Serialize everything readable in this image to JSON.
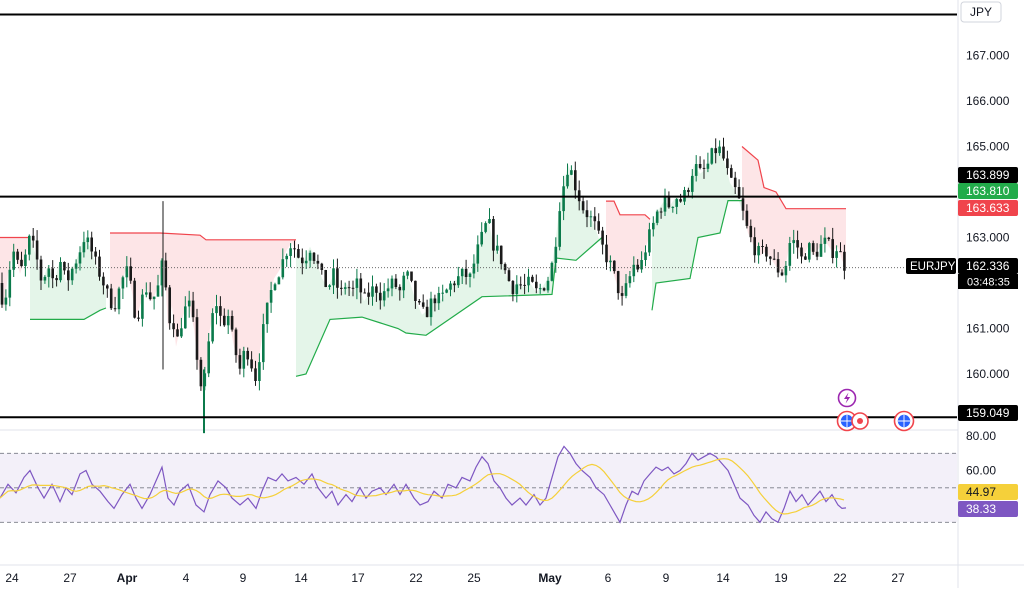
{
  "chart_data": {
    "type": "candlestick",
    "symbol": "EURJPY",
    "currency": "JPY",
    "price_axis": {
      "range": [
        158.6,
        168.2
      ],
      "ticks": [
        "167.000",
        "166.000",
        "165.000",
        "163.000",
        "162.000",
        "161.000",
        "160.000"
      ],
      "tick_values": [
        167,
        166,
        165,
        163,
        162,
        161,
        160
      ]
    },
    "price_labels": [
      {
        "name": "level-top",
        "text": "163.899",
        "value": 163.899,
        "color": "#000000"
      },
      {
        "name": "supertrend-up",
        "text": "163.810",
        "value": 163.81,
        "color": "#22ab4a"
      },
      {
        "name": "supertrend-down",
        "text": "163.633",
        "value": 163.633,
        "color": "#f0444c"
      },
      {
        "name": "last-price",
        "text": "162.336",
        "value": 162.336,
        "color": "#000000"
      },
      {
        "name": "level-bottom",
        "text": "159.049",
        "value": 159.049,
        "color": "#000000"
      }
    ],
    "countdown": "03:48:35",
    "horizontal_levels": [
      167.9,
      163.899,
      159.049
    ],
    "x_axis": {
      "labels": [
        {
          "text": "24",
          "bold": false
        },
        {
          "text": "27",
          "bold": false
        },
        {
          "text": "Apr",
          "bold": true
        },
        {
          "text": "4",
          "bold": false
        },
        {
          "text": "9",
          "bold": false
        },
        {
          "text": "14",
          "bold": false
        },
        {
          "text": "17",
          "bold": false
        },
        {
          "text": "22",
          "bold": false
        },
        {
          "text": "25",
          "bold": false
        },
        {
          "text": "May",
          "bold": true
        },
        {
          "text": "6",
          "bold": false
        },
        {
          "text": "9",
          "bold": false
        },
        {
          "text": "14",
          "bold": false
        },
        {
          "text": "19",
          "bold": false
        },
        {
          "text": "22",
          "bold": false
        },
        {
          "text": "27",
          "bold": false
        }
      ]
    },
    "price_path": [
      [
        0,
        162.0
      ],
      [
        4,
        161.4
      ],
      [
        8,
        162.2
      ],
      [
        14,
        162.7
      ],
      [
        20,
        162.2
      ],
      [
        26,
        162.6
      ],
      [
        30,
        163.0
      ],
      [
        36,
        162.6
      ],
      [
        42,
        162.0
      ],
      [
        48,
        162.4
      ],
      [
        54,
        162.0
      ],
      [
        60,
        162.5
      ],
      [
        66,
        162.0
      ],
      [
        72,
        162.3
      ],
      [
        78,
        162.6
      ],
      [
        84,
        163.0
      ],
      [
        90,
        162.8
      ],
      [
        96,
        162.4
      ],
      [
        102,
        162.1
      ],
      [
        108,
        161.7
      ],
      [
        114,
        161.5
      ],
      [
        120,
        161.9
      ],
      [
        126,
        162.3
      ],
      [
        132,
        161.8
      ],
      [
        136,
        161.2
      ],
      [
        140,
        161.5
      ],
      [
        146,
        161.9
      ],
      [
        152,
        161.6
      ],
      [
        158,
        161.9
      ],
      [
        164,
        162.6
      ],
      [
        168,
        161.0
      ],
      [
        172,
        161.5
      ],
      [
        176,
        160.6
      ],
      [
        182,
        161.2
      ],
      [
        188,
        161.6
      ],
      [
        194,
        161.0
      ],
      [
        198,
        160.2
      ],
      [
        202,
        159.6
      ],
      [
        206,
        160.0
      ],
      [
        210,
        161.0
      ],
      [
        216,
        161.6
      ],
      [
        222,
        161.1
      ],
      [
        228,
        161.3
      ],
      [
        234,
        160.6
      ],
      [
        240,
        160.1
      ],
      [
        246,
        160.6
      ],
      [
        252,
        160.2
      ],
      [
        256,
        159.9
      ],
      [
        262,
        160.8
      ],
      [
        268,
        161.5
      ],
      [
        274,
        162.1
      ],
      [
        280,
        162.3
      ],
      [
        286,
        162.7
      ],
      [
        292,
        162.9
      ],
      [
        298,
        162.6
      ],
      [
        304,
        162.5
      ],
      [
        310,
        162.8
      ],
      [
        316,
        162.5
      ],
      [
        322,
        162.1
      ],
      [
        328,
        161.9
      ],
      [
        334,
        162.2
      ],
      [
        340,
        161.7
      ],
      [
        346,
        162.0
      ],
      [
        352,
        161.8
      ],
      [
        358,
        162.0
      ],
      [
        364,
        161.6
      ],
      [
        370,
        161.8
      ],
      [
        376,
        161.9
      ],
      [
        382,
        161.7
      ],
      [
        388,
        161.9
      ],
      [
        394,
        162.0
      ],
      [
        400,
        161.8
      ],
      [
        406,
        162.2
      ],
      [
        410,
        162.0
      ],
      [
        416,
        161.6
      ],
      [
        422,
        161.3
      ],
      [
        428,
        161.4
      ],
      [
        434,
        161.7
      ],
      [
        440,
        161.6
      ],
      [
        446,
        161.8
      ],
      [
        452,
        162.0
      ],
      [
        458,
        162.1
      ],
      [
        464,
        162.2
      ],
      [
        470,
        162.1
      ],
      [
        476,
        162.6
      ],
      [
        482,
        163.0
      ],
      [
        488,
        163.4
      ],
      [
        494,
        162.8
      ],
      [
        500,
        162.6
      ],
      [
        506,
        162.2
      ],
      [
        512,
        161.9
      ],
      [
        518,
        162.0
      ],
      [
        524,
        161.9
      ],
      [
        530,
        162.0
      ],
      [
        536,
        161.8
      ],
      [
        542,
        161.9
      ],
      [
        548,
        162.1
      ],
      [
        552,
        162.4
      ],
      [
        556,
        163.0
      ],
      [
        560,
        163.8
      ],
      [
        564,
        164.2
      ],
      [
        568,
        164.6
      ],
      [
        572,
        164.4
      ],
      [
        576,
        164.1
      ],
      [
        582,
        163.7
      ],
      [
        588,
        163.5
      ],
      [
        594,
        163.3
      ],
      [
        600,
        162.9
      ],
      [
        606,
        162.6
      ],
      [
        612,
        162.3
      ],
      [
        618,
        161.9
      ],
      [
        622,
        161.6
      ],
      [
        628,
        162.0
      ],
      [
        634,
        162.4
      ],
      [
        640,
        162.3
      ],
      [
        646,
        162.8
      ],
      [
        652,
        163.2
      ],
      [
        658,
        163.6
      ],
      [
        664,
        163.8
      ],
      [
        670,
        163.7
      ],
      [
        676,
        163.9
      ],
      [
        682,
        163.8
      ],
      [
        688,
        164.1
      ],
      [
        694,
        164.6
      ],
      [
        700,
        164.4
      ],
      [
        706,
        164.5
      ],
      [
        712,
        164.8
      ],
      [
        718,
        165.0
      ],
      [
        724,
        164.7
      ],
      [
        730,
        164.2
      ],
      [
        736,
        164.0
      ],
      [
        742,
        163.6
      ],
      [
        748,
        163.1
      ],
      [
        754,
        162.8
      ],
      [
        760,
        162.6
      ],
      [
        766,
        162.7
      ],
      [
        772,
        162.5
      ],
      [
        778,
        162.3
      ],
      [
        784,
        162.2
      ],
      [
        790,
        162.9
      ],
      [
        796,
        162.9
      ],
      [
        802,
        162.5
      ],
      [
        808,
        162.8
      ],
      [
        814,
        162.6
      ],
      [
        820,
        162.8
      ],
      [
        826,
        162.9
      ],
      [
        832,
        162.7
      ],
      [
        838,
        162.8
      ],
      [
        842,
        162.5
      ],
      [
        846,
        162.34
      ]
    ],
    "supertrend": {
      "down_segments": [
        [
          [
            0,
            163.0
          ],
          [
            30,
            163.0
          ]
        ],
        [
          [
            110,
            163.1
          ],
          [
            160,
            163.1
          ],
          [
            200,
            163.05
          ],
          [
            206,
            162.95
          ],
          [
            296,
            162.95
          ]
        ],
        [
          [
            606,
            163.8
          ],
          [
            614,
            163.8
          ],
          [
            620,
            163.5
          ],
          [
            645,
            163.5
          ],
          [
            650,
            163.4
          ]
        ],
        [
          [
            742,
            165.0
          ],
          [
            758,
            164.7
          ],
          [
            764,
            164.1
          ],
          [
            776,
            164.0
          ],
          [
            786,
            163.633
          ],
          [
            846,
            163.633
          ]
        ]
      ],
      "up_segments": [
        [
          [
            30,
            161.2
          ],
          [
            84,
            161.2
          ],
          [
            100,
            161.4
          ],
          [
            106,
            161.45
          ]
        ],
        [
          [
            296,
            159.95
          ],
          [
            306,
            160.0
          ],
          [
            330,
            161.2
          ],
          [
            362,
            161.25
          ],
          [
            398,
            161.0
          ],
          [
            406,
            160.9
          ],
          [
            426,
            160.85
          ],
          [
            482,
            161.7
          ],
          [
            552,
            161.75
          ],
          [
            556,
            162.55
          ],
          [
            576,
            162.5
          ],
          [
            602,
            163.0
          ]
        ],
        [
          [
            652,
            161.4
          ],
          [
            656,
            162.0
          ],
          [
            690,
            162.1
          ],
          [
            698,
            163.0
          ],
          [
            720,
            163.1
          ],
          [
            728,
            163.81
          ],
          [
            742,
            163.81
          ]
        ]
      ]
    },
    "signal_icons": [
      "flash-icon",
      "globe-icon",
      "record-dot-icon",
      "globe-icon"
    ],
    "rsi": {
      "range": [
        20,
        90
      ],
      "ticks": [
        "80.00",
        "60.00"
      ],
      "tick_values": [
        80,
        60
      ],
      "upper_band": 70,
      "mid_band": 50,
      "lower_band": 30,
      "labels": [
        {
          "name": "rsi-ma-value",
          "text": "44.97",
          "value": 44.97,
          "color": "#f5d03a"
        },
        {
          "name": "rsi-value",
          "text": "38.33",
          "value": 38.33,
          "color": "#7e57c2"
        }
      ],
      "rsi_path": [
        [
          0,
          44
        ],
        [
          8,
          52
        ],
        [
          16,
          47
        ],
        [
          24,
          56
        ],
        [
          30,
          60
        ],
        [
          38,
          50
        ],
        [
          44,
          44
        ],
        [
          52,
          52
        ],
        [
          60,
          42
        ],
        [
          66,
          50
        ],
        [
          72,
          46
        ],
        [
          80,
          58
        ],
        [
          86,
          60
        ],
        [
          92,
          52
        ],
        [
          100,
          48
        ],
        [
          108,
          42
        ],
        [
          114,
          38
        ],
        [
          122,
          46
        ],
        [
          130,
          52
        ],
        [
          136,
          44
        ],
        [
          142,
          38
        ],
        [
          150,
          46
        ],
        [
          156,
          54
        ],
        [
          162,
          62
        ],
        [
          168,
          44
        ],
        [
          174,
          40
        ],
        [
          180,
          48
        ],
        [
          188,
          52
        ],
        [
          196,
          40
        ],
        [
          204,
          36
        ],
        [
          210,
          46
        ],
        [
          218,
          54
        ],
        [
          226,
          50
        ],
        [
          232,
          44
        ],
        [
          240,
          40
        ],
        [
          248,
          44
        ],
        [
          256,
          38
        ],
        [
          262,
          48
        ],
        [
          268,
          56
        ],
        [
          276,
          54
        ],
        [
          282,
          58
        ],
        [
          288,
          54
        ],
        [
          296,
          56
        ],
        [
          304,
          52
        ],
        [
          312,
          58
        ],
        [
          318,
          50
        ],
        [
          326,
          44
        ],
        [
          332,
          48
        ],
        [
          338,
          40
        ],
        [
          346,
          46
        ],
        [
          352,
          42
        ],
        [
          360,
          50
        ],
        [
          366,
          44
        ],
        [
          372,
          48
        ],
        [
          380,
          50
        ],
        [
          386,
          46
        ],
        [
          394,
          52
        ],
        [
          400,
          46
        ],
        [
          406,
          52
        ],
        [
          414,
          44
        ],
        [
          420,
          40
        ],
        [
          428,
          42
        ],
        [
          434,
          48
        ],
        [
          442,
          44
        ],
        [
          448,
          52
        ],
        [
          456,
          50
        ],
        [
          462,
          56
        ],
        [
          470,
          54
        ],
        [
          476,
          62
        ],
        [
          482,
          68
        ],
        [
          488,
          64
        ],
        [
          494,
          54
        ],
        [
          500,
          50
        ],
        [
          506,
          44
        ],
        [
          512,
          40
        ],
        [
          520,
          44
        ],
        [
          526,
          40
        ],
        [
          534,
          46
        ],
        [
          540,
          40
        ],
        [
          546,
          44
        ],
        [
          552,
          56
        ],
        [
          558,
          68
        ],
        [
          564,
          74
        ],
        [
          570,
          70
        ],
        [
          576,
          64
        ],
        [
          582,
          60
        ],
        [
          590,
          56
        ],
        [
          596,
          50
        ],
        [
          604,
          46
        ],
        [
          610,
          40
        ],
        [
          616,
          34
        ],
        [
          620,
          30
        ],
        [
          626,
          40
        ],
        [
          632,
          48
        ],
        [
          638,
          46
        ],
        [
          644,
          54
        ],
        [
          650,
          58
        ],
        [
          656,
          62
        ],
        [
          662,
          60
        ],
        [
          668,
          62
        ],
        [
          674,
          58
        ],
        [
          680,
          60
        ],
        [
          686,
          64
        ],
        [
          692,
          70
        ],
        [
          698,
          66
        ],
        [
          704,
          68
        ],
        [
          710,
          70
        ],
        [
          716,
          68
        ],
        [
          722,
          64
        ],
        [
          728,
          60
        ],
        [
          734,
          52
        ],
        [
          740,
          44
        ],
        [
          748,
          40
        ],
        [
          754,
          34
        ],
        [
          760,
          30
        ],
        [
          766,
          36
        ],
        [
          772,
          32
        ],
        [
          778,
          30
        ],
        [
          784,
          38
        ],
        [
          790,
          48
        ],
        [
          796,
          42
        ],
        [
          802,
          46
        ],
        [
          808,
          40
        ],
        [
          814,
          44
        ],
        [
          820,
          48
        ],
        [
          826,
          42
        ],
        [
          832,
          46
        ],
        [
          838,
          40
        ],
        [
          842,
          38
        ],
        [
          846,
          38.33
        ]
      ]
    }
  }
}
